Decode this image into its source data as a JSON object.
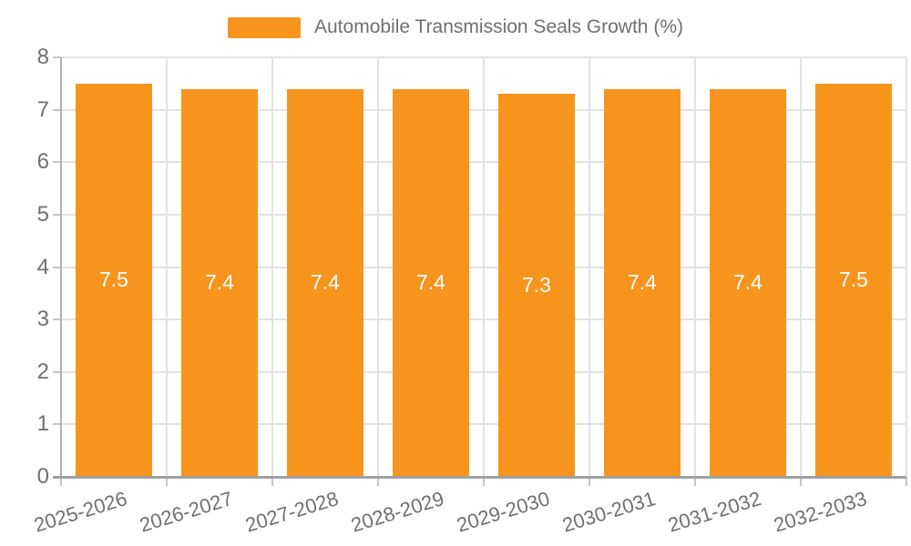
{
  "legend": {
    "label": "Automobile Transmission Seals Growth (%)"
  },
  "colors": {
    "bar": "#F7941E",
    "text": "#707070",
    "grid": "#E2E2E2",
    "tick": "#C6C6C6",
    "axis_v": "#B0B0B0",
    "axis_h": "#A0A0A0",
    "value_text": "#FFFFFF"
  },
  "chart_data": {
    "type": "bar",
    "title": "Automobile Transmission Seals Growth (%)",
    "categories": [
      "2025-2026",
      "2026-2027",
      "2027-2028",
      "2028-2029",
      "2029-2030",
      "2030-2031",
      "2031-2032",
      "2032-2033"
    ],
    "values": [
      7.5,
      7.4,
      7.4,
      7.4,
      7.3,
      7.4,
      7.4,
      7.5
    ],
    "bar_labels": [
      "7.5",
      "7.4",
      "7.4",
      "7.4",
      "7.3",
      "7.4",
      "7.4",
      "7.5"
    ],
    "xlabel": "",
    "ylabel": "",
    "ylim": [
      0,
      8
    ],
    "y_ticks": [
      0,
      1,
      2,
      3,
      4,
      5,
      6,
      7,
      8
    ],
    "grid": true,
    "legend_position": "top-center",
    "value_labels_inside": true
  }
}
